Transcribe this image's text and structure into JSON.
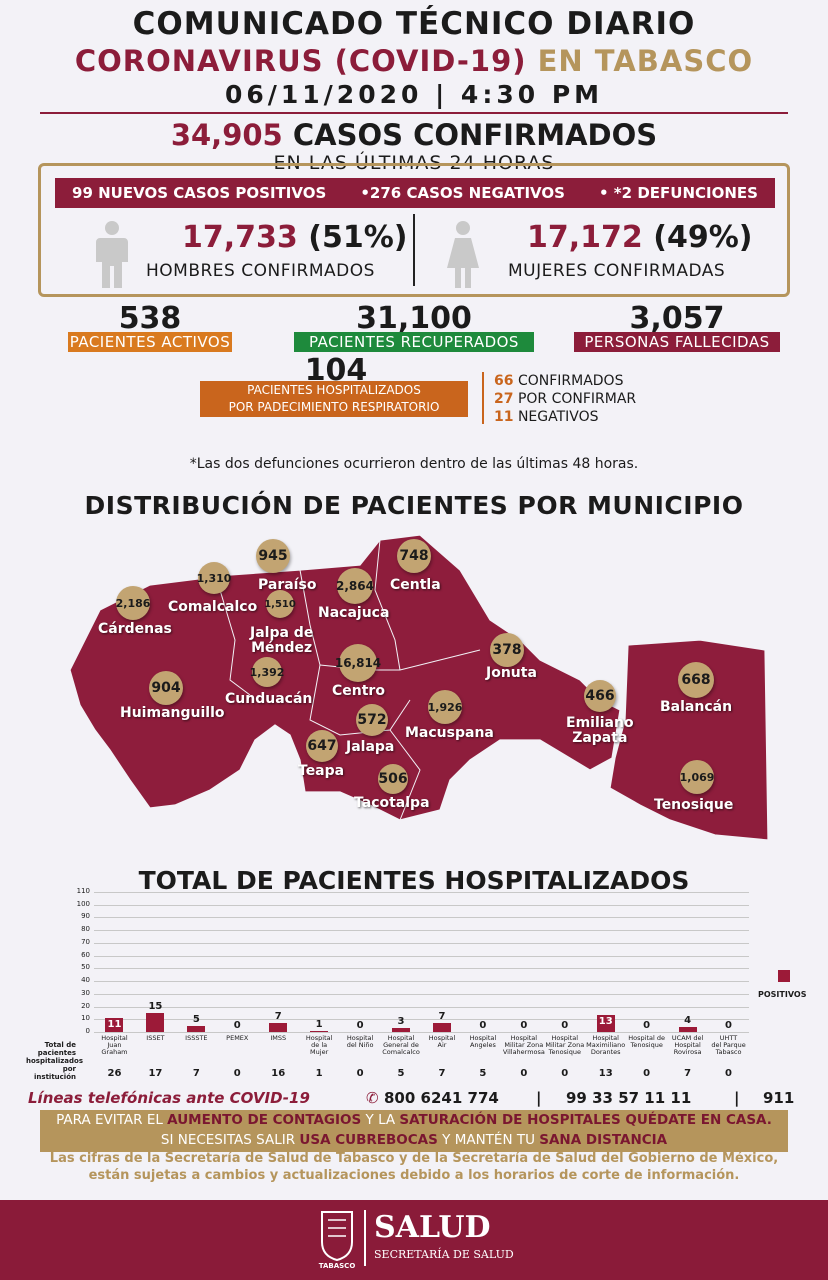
{
  "header": {
    "title": "COMUNICADO TÉCNICO DIARIO",
    "subtitle_part1": "CORONAVIRUS (COVID-19)",
    "subtitle_part2": "EN TABASCO",
    "datetime": "06/11/2020 | 4:30 PM"
  },
  "summary": {
    "confirmed_number": "34,905",
    "confirmed_label": "CASOS CONFIRMADOS",
    "last24_label": "EN LAS ÚLTIMAS 24 HORAS",
    "new_positive": "99 NUEVOS CASOS POSITIVOS",
    "new_negative": "•276 CASOS NEGATIVOS",
    "new_deaths": "• *2 DEFUNCIONES",
    "men_number": "17,733",
    "men_pct": "(51%)",
    "men_label": "HOMBRES CONFIRMADOS",
    "women_number": "17,172",
    "women_pct": "(49%)",
    "women_label": "MUJERES CONFIRMADAS"
  },
  "stats": {
    "active_number": "538",
    "active_label": "PACIENTES ACTIVOS",
    "recovered_number": "31,100",
    "recovered_label": "PACIENTES RECUPERADOS",
    "deaths_number": "3,057",
    "deaths_label": "PERSONAS FALLECIDAS",
    "active_color": "#d97a1f",
    "recovered_color": "#1e8a3c",
    "deaths_color": "#8c1d3a"
  },
  "hospitalized": {
    "number": "104",
    "label_line1": "PACIENTES HOSPITALIZADOS",
    "label_line2": "POR PADECIMIENTO RESPIRATORIO",
    "confirmed_n": "66",
    "confirmed_lbl": "CONFIRMADOS",
    "pending_n": "27",
    "pending_lbl": "POR CONFIRMAR",
    "negative_n": "11",
    "negative_lbl": "NEGATIVOS"
  },
  "footnote": "*Las dos defunciones ocurrieron dentro de las últimas 48 horas.",
  "map": {
    "title": "DISTRIBUCIÓN DE PACIENTES POR MUNICIPIO",
    "municipalities": [
      {
        "name": "Paraíso",
        "value": "945"
      },
      {
        "name": "Centla",
        "value": "748"
      },
      {
        "name": "Comalcalco",
        "value": "1,310"
      },
      {
        "name": "Cárdenas",
        "value": "2,186"
      },
      {
        "name": "Jalpa de\nMéndez",
        "value": "1,510"
      },
      {
        "name": "Nacajuca",
        "value": "2,864"
      },
      {
        "name": "Cunduacán",
        "value": "1,392"
      },
      {
        "name": "Huimanguillo",
        "value": "904"
      },
      {
        "name": "Centro",
        "value": "16,814"
      },
      {
        "name": "Jonuta",
        "value": "378"
      },
      {
        "name": "Jalapa",
        "value": "572"
      },
      {
        "name": "Macuspana",
        "value": "1,926"
      },
      {
        "name": "Teapa",
        "value": "647"
      },
      {
        "name": "Tacotalpa",
        "value": "506"
      },
      {
        "name": "Emiliano\nZapata",
        "value": "466"
      },
      {
        "name": "Balancán",
        "value": "668"
      },
      {
        "name": "Tenosique",
        "value": "1,069"
      }
    ]
  },
  "chart_data": {
    "type": "bar",
    "title": "TOTAL DE PACIENTES HOSPITALIZADOS",
    "categories": [
      "Hospital\nJuan Graham",
      "ISSET",
      "ISSSTE",
      "PEMEX",
      "IMSS",
      "Hospital\nde la\nMujer",
      "Hospital\ndel Niño",
      "Hospital\nGeneral de\nComalcalco",
      "Hospital\nAir",
      "Hospital\nAngeles",
      "Hospital\nMilitar Zona\nVillahermosa",
      "Hospital\nMilitar Zona\nTenosique",
      "Hospital\nMaximiliano\nDorantes",
      "Hospital de\nTenosique",
      "UCAM del\nHospital\nRovirosa",
      "UHTT\ndel Parque\nTabasco"
    ],
    "series": [
      {
        "name": "POSITIVOS",
        "values": [
          11,
          15,
          5,
          0,
          7,
          1,
          0,
          3,
          7,
          0,
          0,
          0,
          13,
          0,
          4,
          0
        ],
        "color": "#9c1a38"
      }
    ],
    "totals_label": "Total de\npacientes\nhospitalizados\npor institución",
    "totals": [
      "26",
      "17",
      "7",
      "0",
      "16",
      "1",
      "0",
      "5",
      "7",
      "5",
      "0",
      "0",
      "13",
      "0",
      "7",
      "0"
    ],
    "yticks": [
      "0",
      "10",
      "20",
      "30",
      "40",
      "50",
      "60",
      "70",
      "80",
      "90",
      "100",
      "110"
    ],
    "ylim": [
      0,
      110
    ],
    "legend": "right"
  },
  "contact": {
    "label": "Líneas telefónicas ante COVID-19",
    "phone1": "800 6241 774",
    "phone2": "99 33 57 11 11",
    "phone3": "911"
  },
  "banner": {
    "l1a": "PARA EVITAR EL ",
    "l1b": "AUMENTO DE CONTAGIOS",
    "l1c": " Y LA ",
    "l1d": "SATURACIÓN DE HOSPITALES QUÉDATE EN CASA.",
    "l2a": "SI NECESITAS SALIR ",
    "l2b": "USA CUBREBOCAS",
    "l2c": " Y MANTÉN TU ",
    "l2d": "SANA DISTANCIA"
  },
  "disclaimer": "Las cifras de la Secretaría de Salud de Tabasco y de la Secretaría de Salud del Gobierno de México, están sujetas a cambios y actualizaciones debido a los horarios de corte de información.",
  "footer": {
    "logo_title": "SALUD",
    "logo_subtitle": "SECRETARÍA DE SALUD",
    "seal_text": "TABASCO"
  }
}
